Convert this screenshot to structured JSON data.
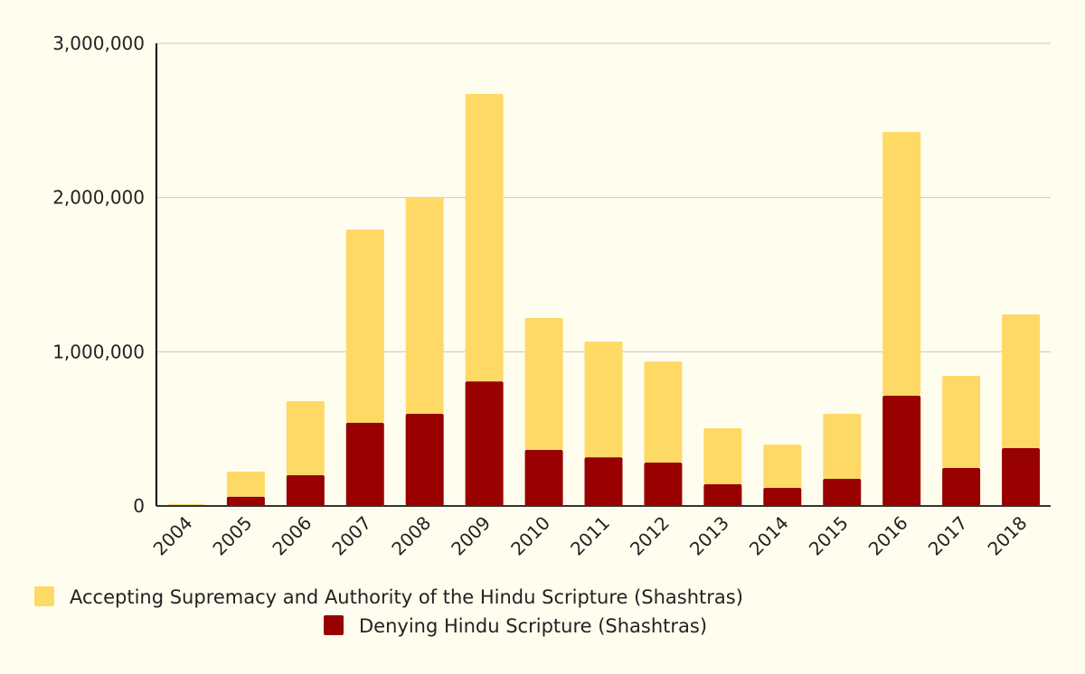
{
  "chart_data": {
    "type": "bar",
    "stacked": true,
    "title": "",
    "xlabel": "",
    "ylabel": "",
    "ylim": [
      0,
      3000000
    ],
    "yticks": [
      0,
      1000000,
      2000000,
      3000000
    ],
    "ytick_labels": [
      "0",
      "1,000,000",
      "2,000,000",
      "3,000,000"
    ],
    "grid": true,
    "legend_position": "bottom",
    "categories": [
      "2004",
      "2005",
      "2006",
      "2007",
      "2008",
      "2009",
      "2010",
      "2011",
      "2012",
      "2013",
      "2014",
      "2015",
      "2016",
      "2017",
      "2018"
    ],
    "series": [
      {
        "name": "Denying Hindu Scripture (Shashtras)",
        "color": "#990000",
        "values": [
          0,
          60000,
          200000,
          540000,
          598000,
          808000,
          363000,
          316000,
          281000,
          141000,
          117000,
          176000,
          715000,
          246000,
          375000
        ]
      },
      {
        "name": "Accepting Supremacy and Authority of the Hindu Scripture (Shashtras)",
        "color": "#ffd966",
        "values": [
          12000,
          163000,
          480000,
          1253000,
          1402000,
          1864000,
          856000,
          750000,
          656000,
          363000,
          281000,
          422000,
          1711000,
          598000,
          867000
        ]
      }
    ],
    "legend_order": [
      1,
      0
    ]
  }
}
